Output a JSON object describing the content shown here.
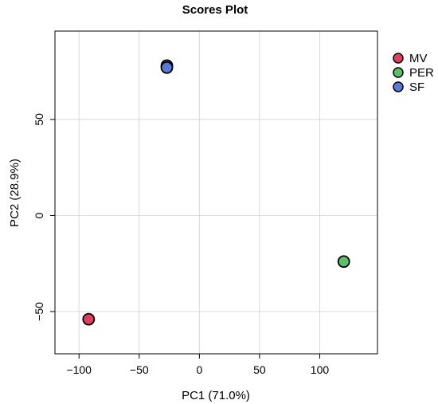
{
  "chart_data": {
    "type": "scatter",
    "title": "Scores Plot",
    "xlabel": "PC1 (71.0%)",
    "ylabel": "PC2 (28.9%)",
    "xlim": [
      -120,
      148
    ],
    "ylim": [
      -72,
      96
    ],
    "xticks": [
      -100,
      -50,
      0,
      50,
      100
    ],
    "yticks": [
      -50,
      0,
      50
    ],
    "grid": true,
    "legend_position": "top-right",
    "series": [
      {
        "name": "MV",
        "color": "#E0405F",
        "points": [
          [
            -92,
            -54
          ]
        ]
      },
      {
        "name": "PER",
        "color": "#5CBF6A",
        "points": [
          [
            120,
            -24
          ]
        ]
      },
      {
        "name": "SF",
        "color": "#5A79D8",
        "points": [
          [
            -27,
            78
          ],
          [
            -27,
            77
          ]
        ]
      }
    ]
  }
}
